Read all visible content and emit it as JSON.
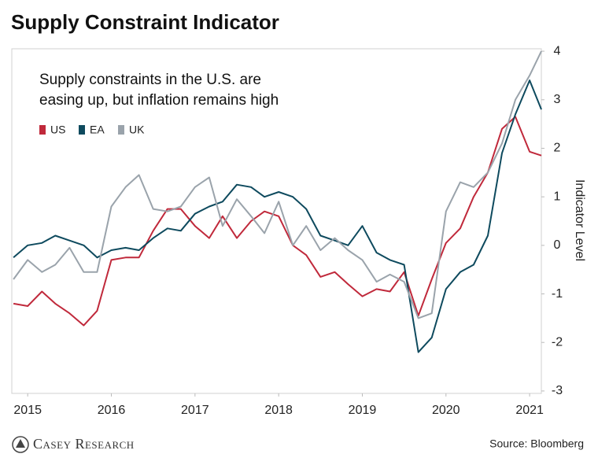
{
  "chart_data": {
    "type": "line",
    "title": "Supply Constraint Indicator",
    "annotation": [
      "Supply constraints in the U.S. are",
      "easing up, but inflation remains high"
    ],
    "y_label": "Indicator Level",
    "source": "Source: Bloomberg",
    "brand": "Casey Research",
    "x": [
      2014.83,
      2015.0,
      2015.17,
      2015.33,
      2015.5,
      2015.67,
      2015.83,
      2016.0,
      2016.17,
      2016.33,
      2016.5,
      2016.67,
      2016.83,
      2017.0,
      2017.17,
      2017.33,
      2017.5,
      2017.67,
      2017.83,
      2018.0,
      2018.17,
      2018.33,
      2018.5,
      2018.67,
      2018.83,
      2019.0,
      2019.17,
      2019.33,
      2019.5,
      2019.67,
      2019.83,
      2020.0,
      2020.17,
      2020.33,
      2020.5,
      2020.67,
      2020.83,
      2021.0,
      2021.14
    ],
    "series": [
      {
        "name": "US",
        "color": "#c0293b",
        "values": [
          -1.2,
          -1.25,
          -0.95,
          -1.2,
          -1.4,
          -1.65,
          -1.35,
          -0.3,
          -0.25,
          -0.25,
          0.3,
          0.75,
          0.75,
          0.4,
          0.15,
          0.6,
          0.15,
          0.5,
          0.7,
          0.6,
          0.0,
          -0.2,
          -0.65,
          -0.55,
          -0.8,
          -1.05,
          -0.9,
          -0.95,
          -0.55,
          -1.45,
          -0.7,
          0.05,
          0.35,
          1.0,
          1.5,
          2.4,
          2.65,
          1.93,
          1.85
        ]
      },
      {
        "name": "EA",
        "color": "#0e4a5e",
        "values": [
          -0.25,
          0.0,
          0.05,
          0.2,
          0.1,
          0.0,
          -0.25,
          -0.1,
          -0.05,
          -0.1,
          0.15,
          0.35,
          0.3,
          0.65,
          0.8,
          0.9,
          1.25,
          1.2,
          1.0,
          1.1,
          1.0,
          0.75,
          0.2,
          0.1,
          0.0,
          0.4,
          -0.15,
          -0.3,
          -0.4,
          -2.2,
          -1.9,
          -0.9,
          -0.55,
          -0.4,
          0.2,
          1.9,
          2.7,
          3.4,
          2.8
        ]
      },
      {
        "name": "UK",
        "color": "#9aa3ab",
        "values": [
          -0.7,
          -0.3,
          -0.55,
          -0.4,
          -0.05,
          -0.55,
          -0.55,
          0.8,
          1.2,
          1.45,
          0.75,
          0.7,
          0.8,
          1.2,
          1.4,
          0.4,
          0.95,
          0.6,
          0.25,
          0.9,
          0.0,
          0.4,
          -0.1,
          0.15,
          -0.1,
          -0.3,
          -0.75,
          -0.6,
          -0.75,
          -1.5,
          -1.4,
          0.7,
          1.3,
          1.2,
          1.5,
          2.1,
          3.0,
          3.5,
          4.0
        ]
      }
    ],
    "xlim": [
      2014.81,
      2021.14
    ],
    "xticks": [
      2015,
      2016,
      2017,
      2018,
      2019,
      2020,
      2021
    ],
    "ylim": [
      -3.05,
      4.05
    ],
    "yticks": [
      -3,
      -2,
      -1,
      0,
      1,
      2,
      3,
      4
    ],
    "legend": "upper left"
  }
}
